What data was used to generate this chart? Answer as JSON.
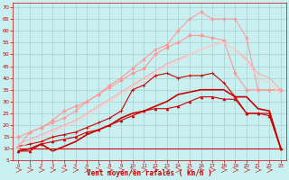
{
  "background_color": "#c8f0f0",
  "grid_color": "#a0c8c8",
  "xlabel": "Vent moyen/en rafales ( km/h )",
  "xlabel_color": "#cc0000",
  "tick_color": "#cc0000",
  "xlim": [
    -0.5,
    23.5
  ],
  "ylim": [
    5,
    72
  ],
  "yticks": [
    5,
    10,
    15,
    20,
    25,
    30,
    35,
    40,
    45,
    50,
    55,
    60,
    65,
    70
  ],
  "xticks": [
    0,
    1,
    2,
    3,
    4,
    5,
    6,
    7,
    8,
    9,
    10,
    11,
    12,
    13,
    14,
    15,
    16,
    17,
    18,
    19,
    20,
    21,
    22,
    23
  ],
  "lines": [
    {
      "x": [
        0,
        1,
        2,
        3,
        4,
        5,
        6,
        7,
        8,
        9,
        10,
        11,
        12,
        13,
        14,
        15,
        16,
        17,
        18,
        19,
        20,
        21,
        22,
        23
      ],
      "y": [
        10,
        10,
        10,
        10,
        10,
        10,
        10,
        10,
        10,
        10,
        10,
        10,
        10,
        10,
        10,
        10,
        10,
        10,
        10,
        10,
        10,
        10,
        10,
        10
      ],
      "color": "#cc0000",
      "lw": 0.8,
      "marker": null,
      "linestyle": "-"
    },
    {
      "x": [
        0,
        1,
        2,
        3,
        4,
        5,
        6,
        7,
        8,
        9,
        10,
        11,
        12,
        13,
        14,
        15,
        16,
        17,
        18,
        19,
        20,
        21,
        22,
        23
      ],
      "y": [
        9,
        9,
        12,
        13,
        14,
        15,
        17,
        18,
        20,
        22,
        24,
        26,
        27,
        27,
        28,
        30,
        32,
        32,
        31,
        31,
        25,
        25,
        24,
        10
      ],
      "color": "#cc0000",
      "lw": 0.8,
      "marker": "^",
      "markersize": 2,
      "linestyle": "-"
    },
    {
      "x": [
        0,
        1,
        2,
        3,
        4,
        5,
        6,
        7,
        8,
        9,
        10,
        11,
        12,
        13,
        14,
        15,
        16,
        17,
        18,
        19,
        20,
        21,
        22,
        23
      ],
      "y": [
        11,
        12,
        13,
        15,
        16,
        17,
        19,
        21,
        23,
        26,
        35,
        37,
        41,
        42,
        40,
        41,
        41,
        42,
        38,
        32,
        25,
        25,
        25,
        10
      ],
      "color": "#cc0000",
      "lw": 0.8,
      "marker": "+",
      "markersize": 3,
      "linestyle": "-"
    },
    {
      "x": [
        0,
        1,
        2,
        3,
        4,
        5,
        6,
        7,
        8,
        9,
        10,
        11,
        12,
        13,
        14,
        15,
        16,
        17,
        18,
        19,
        20,
        21,
        22,
        23
      ],
      "y": [
        9,
        10,
        12,
        9,
        11,
        13,
        16,
        18,
        20,
        23,
        25,
        26,
        28,
        30,
        33,
        34,
        35,
        35,
        35,
        32,
        32,
        27,
        26,
        10
      ],
      "color": "#cc0000",
      "lw": 1.2,
      "marker": null,
      "linestyle": "-"
    },
    {
      "x": [
        0,
        1,
        2,
        3,
        4,
        5,
        6,
        7,
        8,
        9,
        10,
        11,
        12,
        13,
        14,
        15,
        16,
        17,
        18,
        19,
        20,
        21,
        22,
        23
      ],
      "y": [
        15,
        17,
        19,
        22,
        26,
        28,
        30,
        33,
        36,
        39,
        42,
        44,
        50,
        53,
        55,
        58,
        58,
        57,
        56,
        42,
        35,
        35,
        35,
        35
      ],
      "color": "#ff9999",
      "lw": 0.8,
      "marker": "D",
      "markersize": 2,
      "linestyle": "-"
    },
    {
      "x": [
        0,
        1,
        2,
        3,
        4,
        5,
        6,
        7,
        8,
        9,
        10,
        11,
        12,
        13,
        14,
        15,
        16,
        17,
        18,
        19,
        20,
        21,
        22,
        23
      ],
      "y": [
        11,
        17,
        19,
        21,
        23,
        26,
        30,
        33,
        37,
        40,
        44,
        48,
        52,
        54,
        60,
        65,
        68,
        65,
        65,
        65,
        57,
        35,
        35,
        35
      ],
      "color": "#ff9999",
      "lw": 0.8,
      "marker": "o",
      "markersize": 2,
      "linestyle": "-"
    },
    {
      "x": [
        0,
        1,
        2,
        3,
        4,
        5,
        6,
        7,
        8,
        9,
        10,
        11,
        12,
        13,
        14,
        15,
        16,
        17,
        18,
        19,
        20,
        21,
        22,
        23
      ],
      "y": [
        12,
        14,
        16,
        18,
        20,
        22,
        25,
        28,
        31,
        34,
        37,
        40,
        43,
        46,
        48,
        50,
        52,
        54,
        55,
        52,
        48,
        42,
        40,
        35
      ],
      "color": "#ffaaaa",
      "lw": 0.8,
      "marker": null,
      "linestyle": "-"
    },
    {
      "x": [
        0,
        1,
        2,
        3,
        4,
        5,
        6,
        7,
        8,
        9,
        10,
        11,
        12,
        13,
        14,
        15,
        16,
        17,
        18,
        19,
        20,
        21,
        22,
        23
      ],
      "y": [
        10,
        13,
        15,
        17,
        19,
        21,
        24,
        27,
        30,
        33,
        36,
        39,
        42,
        45,
        47,
        50,
        52,
        54,
        55,
        52,
        47,
        40,
        38,
        33
      ],
      "color": "#ffcccc",
      "lw": 0.8,
      "marker": null,
      "linestyle": "-"
    }
  ]
}
